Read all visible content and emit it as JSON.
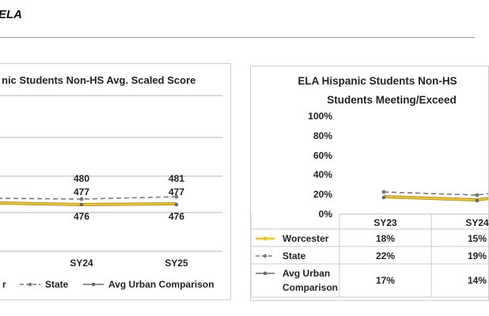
{
  "page": {
    "heading": "ELA"
  },
  "colors": {
    "worcester": "#f2c418",
    "state": "#7a7a7a",
    "urban": "#6a6a6a",
    "worcester_outline": "#9c8a40"
  },
  "chart_data": [
    {
      "type": "line",
      "title": "nic Students Non-HS Avg. Scaled Score",
      "categories": [
        "SY24",
        "SY25"
      ],
      "series": [
        {
          "name": "r",
          "values": [
            476,
            476
          ]
        },
        {
          "name": "State",
          "values": [
            477,
            477
          ]
        },
        {
          "name": "Avg Urban Comparison",
          "values": [
            480,
            481
          ]
        }
      ],
      "labels": {
        "urban": [
          "480",
          "481"
        ],
        "state": [
          "477",
          "477"
        ],
        "worcester": [
          "476",
          "476"
        ]
      },
      "legend": [
        "r",
        "State",
        "Avg Urban Comparison"
      ],
      "legend_position": "bottom"
    },
    {
      "type": "line",
      "title_lines": [
        "ELA Hispanic Students Non-HS",
        "Students Meeting/Exceed"
      ],
      "yticks": [
        "100%",
        "80%",
        "60%",
        "40%",
        "20%",
        "0%"
      ],
      "ylim": [
        0,
        100
      ],
      "categories": [
        "SY23",
        "SY24"
      ],
      "series": [
        {
          "name": "Worcester",
          "values": [
            18,
            15
          ],
          "labels": [
            "18%",
            "15%"
          ]
        },
        {
          "name": "State",
          "values": [
            22,
            19
          ],
          "labels": [
            "22%",
            "19%"
          ]
        },
        {
          "name": "Avg Urban Comparison",
          "name_lines": [
            "Avg Urban",
            "Comparison"
          ],
          "values": [
            17,
            14
          ],
          "labels": [
            "17%",
            "14%"
          ]
        }
      ]
    }
  ]
}
